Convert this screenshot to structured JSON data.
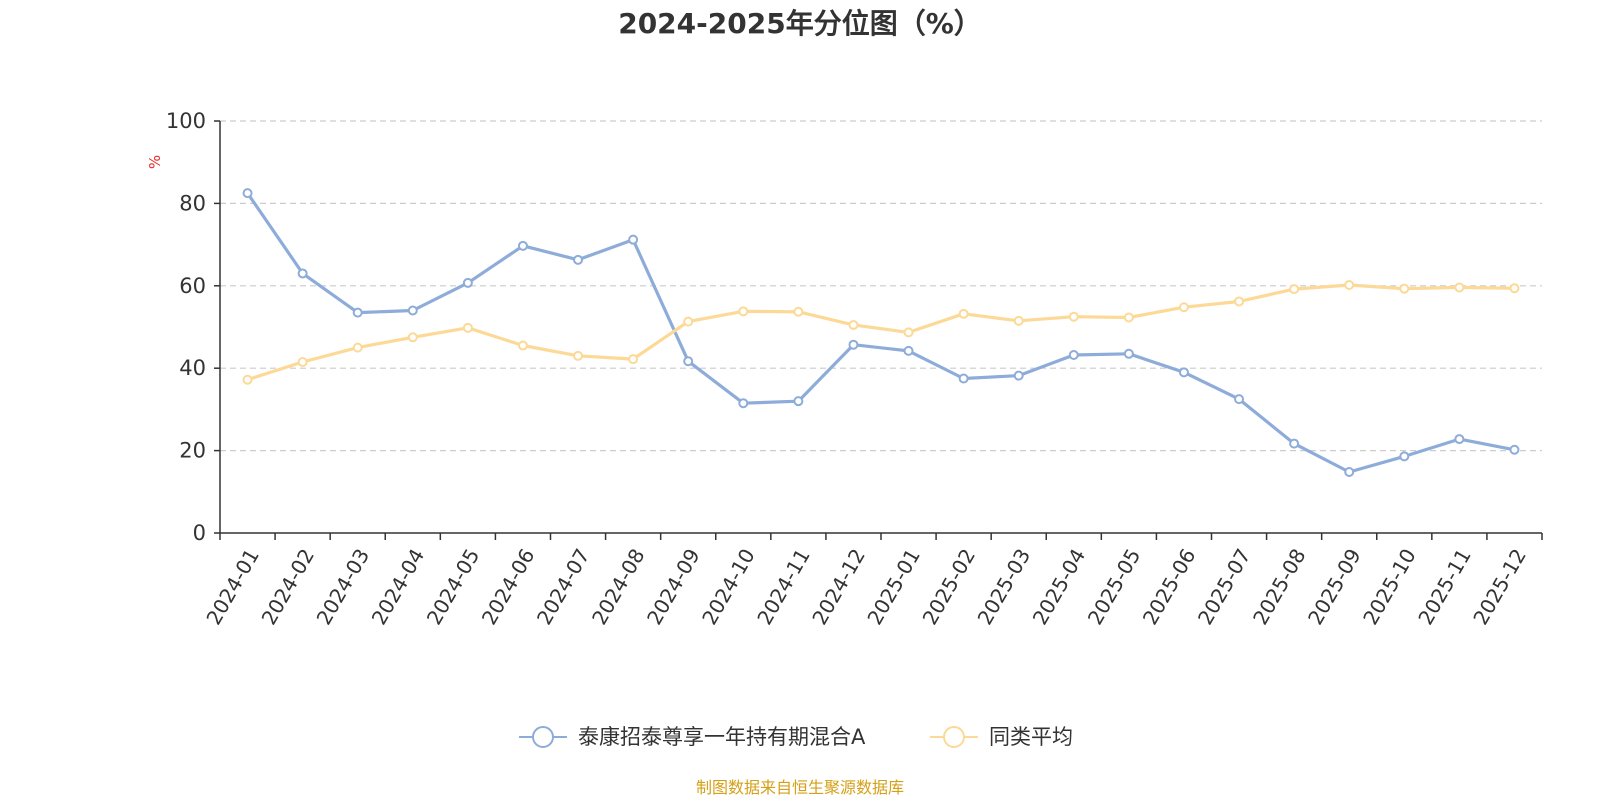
{
  "chart_data": {
    "type": "line",
    "title": "2024-2025年分位图（%）",
    "ylabel": "%",
    "xlabel": "",
    "ylim": [
      0,
      100
    ],
    "yticks": [
      0,
      20,
      40,
      60,
      80,
      100
    ],
    "grid": true,
    "legend_position": "bottom-center",
    "categories": [
      "2024-01",
      "2024-02",
      "2024-03",
      "2024-04",
      "2024-05",
      "2024-06",
      "2024-07",
      "2024-08",
      "2024-09",
      "2024-10",
      "2024-11",
      "2024-12",
      "2025-01",
      "2025-02",
      "2025-03",
      "2025-04",
      "2025-05",
      "2025-06",
      "2025-07",
      "2025-08",
      "2025-09",
      "2025-10",
      "2025-11",
      "2025-12"
    ],
    "series": [
      {
        "name": "泰康招泰尊享一年持有期混合A",
        "color": "#8eacd9",
        "values": [
          82.5,
          63,
          53.5,
          54,
          60.7,
          69.7,
          66.3,
          71.2,
          41.7,
          31.5,
          32,
          45.7,
          44.2,
          37.5,
          38.2,
          43.2,
          43.5,
          39,
          32.5,
          21.7,
          14.8,
          18.6,
          22.8,
          20.2
        ]
      },
      {
        "name": "同类平均",
        "color": "#fcd997",
        "values": [
          37.2,
          41.5,
          45,
          47.5,
          49.8,
          45.5,
          43,
          42.2,
          51.3,
          53.8,
          53.7,
          50.5,
          48.7,
          53.2,
          51.5,
          52.5,
          52.3,
          54.8,
          56.2,
          59.2,
          60.2,
          59.3,
          59.6,
          59.4
        ]
      }
    ]
  },
  "source_text": "制图数据来自恒生聚源数据库",
  "colors": {
    "axis": "#333333",
    "grid": "#cccccc",
    "unit_label": "#e8302a",
    "source": "#d4a017"
  }
}
